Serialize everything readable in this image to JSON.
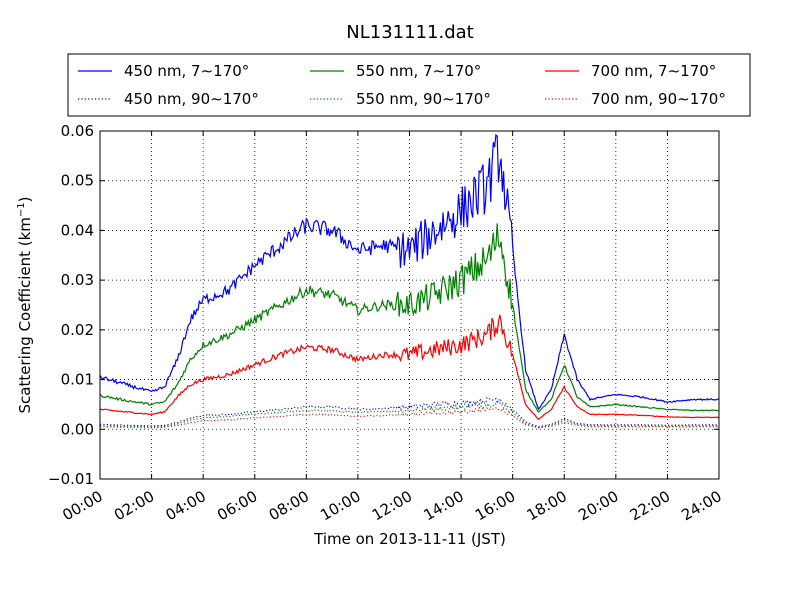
{
  "chart_data": {
    "type": "line",
    "title": "NL131111.dat",
    "xlabel": "Time on 2013-11-11 (JST)",
    "ylabel_main": "Scattering Coefficient (km",
    "ylabel_sup": "−1",
    "ylabel_end": ")",
    "xlim": [
      "00:00",
      "24:00"
    ],
    "ylim": [
      -0.01,
      0.06
    ],
    "x_ticks": [
      "00:00",
      "02:00",
      "04:00",
      "06:00",
      "08:00",
      "10:00",
      "12:00",
      "14:00",
      "16:00",
      "18:00",
      "20:00",
      "22:00",
      "24:00"
    ],
    "y_ticks": [
      "−0.01",
      "0.00",
      "0.01",
      "0.02",
      "0.03",
      "0.04",
      "0.05",
      "0.06"
    ],
    "y_tick_values": [
      -0.01,
      0.0,
      0.01,
      0.02,
      0.03,
      0.04,
      0.05,
      0.06
    ],
    "grid": true,
    "legend_position": "top, above plot (3 columns)",
    "x_hours": [
      0,
      1,
      2,
      2.5,
      3,
      3.5,
      4,
      5,
      6,
      7,
      8,
      9,
      10,
      11,
      12,
      13,
      14,
      15,
      15.5,
      16,
      16.5,
      17,
      17.5,
      18,
      18.5,
      19,
      20,
      21,
      22,
      23,
      24
    ],
    "series": [
      {
        "name": "450 nm, 7∼170°",
        "color": "#0000ff",
        "style": "solid",
        "values": [
          0.0105,
          0.009,
          0.0075,
          0.0085,
          0.014,
          0.022,
          0.026,
          0.028,
          0.033,
          0.037,
          0.041,
          0.04,
          0.036,
          0.037,
          0.036,
          0.04,
          0.044,
          0.049,
          0.056,
          0.036,
          0.012,
          0.004,
          0.008,
          0.019,
          0.01,
          0.006,
          0.007,
          0.0065,
          0.0055,
          0.006,
          0.006
        ]
      },
      {
        "name": "550 nm, 7∼170°",
        "color": "#008000",
        "style": "solid",
        "values": [
          0.0068,
          0.0058,
          0.005,
          0.0055,
          0.009,
          0.014,
          0.017,
          0.019,
          0.022,
          0.025,
          0.028,
          0.027,
          0.024,
          0.025,
          0.025,
          0.027,
          0.03,
          0.034,
          0.039,
          0.025,
          0.008,
          0.0035,
          0.006,
          0.013,
          0.0065,
          0.0045,
          0.005,
          0.0045,
          0.004,
          0.0038,
          0.0038
        ]
      },
      {
        "name": "700 nm, 7∼170°",
        "color": "#ff0000",
        "style": "solid",
        "values": [
          0.004,
          0.0035,
          0.003,
          0.0035,
          0.0065,
          0.009,
          0.01,
          0.011,
          0.013,
          0.015,
          0.0165,
          0.016,
          0.014,
          0.015,
          0.015,
          0.016,
          0.017,
          0.019,
          0.022,
          0.015,
          0.005,
          0.002,
          0.004,
          0.0085,
          0.0045,
          0.003,
          0.003,
          0.0028,
          0.0025,
          0.0024,
          0.0024
        ]
      },
      {
        "name": "450 nm, 90∼170°",
        "color": "#0000ff",
        "style": "dotted",
        "values": [
          0.001,
          0.0008,
          0.0007,
          0.0008,
          0.0014,
          0.0022,
          0.0028,
          0.003,
          0.0035,
          0.004,
          0.0045,
          0.0045,
          0.004,
          0.0042,
          0.0045,
          0.005,
          0.0052,
          0.0058,
          0.0062,
          0.004,
          0.0015,
          0.0005,
          0.001,
          0.0022,
          0.0012,
          0.0009,
          0.0009,
          0.0009,
          0.0008,
          0.0009,
          0.0009
        ]
      },
      {
        "name": "550 nm, 90∼170°",
        "color": "#008000",
        "style": "dotted",
        "values": [
          0.0007,
          0.0006,
          0.0005,
          0.0006,
          0.0011,
          0.0018,
          0.0023,
          0.0026,
          0.003,
          0.0034,
          0.0038,
          0.0037,
          0.0034,
          0.0036,
          0.0038,
          0.0042,
          0.0044,
          0.0049,
          0.0053,
          0.0034,
          0.0012,
          0.0004,
          0.0008,
          0.0018,
          0.001,
          0.0007,
          0.0007,
          0.0007,
          0.0006,
          0.0007,
          0.0007
        ]
      },
      {
        "name": "700 nm, 90∼170°",
        "color": "#ff0000",
        "style": "dotted",
        "values": [
          0.0005,
          0.0004,
          0.0003,
          0.0004,
          0.0008,
          0.0013,
          0.0017,
          0.0019,
          0.0023,
          0.0026,
          0.003,
          0.0029,
          0.0026,
          0.0028,
          0.003,
          0.0033,
          0.0035,
          0.0039,
          0.0042,
          0.0027,
          0.0009,
          0.0003,
          0.0006,
          0.0014,
          0.0008,
          0.0005,
          0.0005,
          0.0005,
          0.0005,
          0.0005,
          0.0005
        ]
      }
    ]
  }
}
